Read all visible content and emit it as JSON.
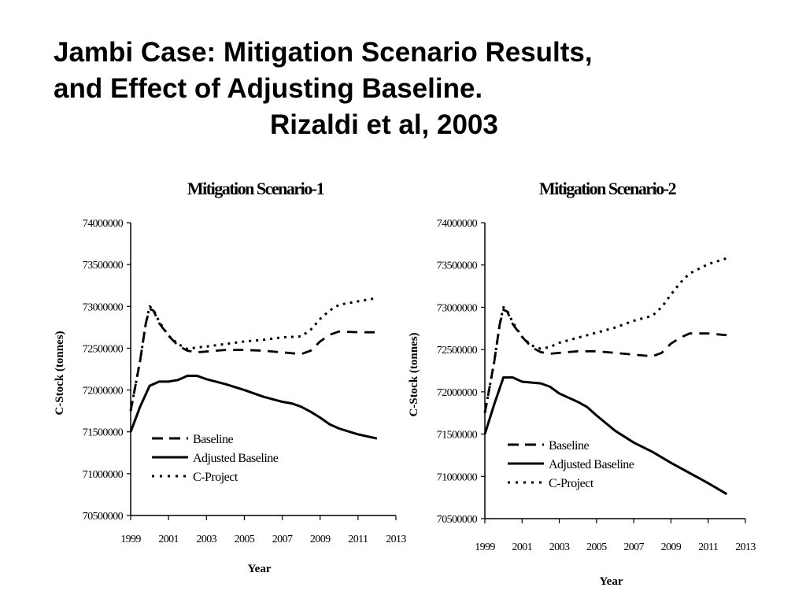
{
  "slide": {
    "title_line1": "Jambi Case:  Mitigation Scenario Results,",
    "title_line2": "and Effect of Adjusting Baseline.",
    "title_line3": "Rizaldi et al, 2003"
  },
  "chart_data": [
    {
      "type": "line",
      "title": "Mitigation Scenario-1",
      "xlabel": "Year",
      "ylabel": "C-Stock (tonnes)",
      "xlim": [
        1999,
        2013
      ],
      "ylim": [
        70500000,
        74000000
      ],
      "x_ticks": [
        1999,
        2001,
        2003,
        2005,
        2007,
        2009,
        2011,
        2013
      ],
      "y_ticks": [
        70500000,
        71000000,
        71500000,
        72000000,
        72500000,
        73000000,
        73500000,
        74000000
      ],
      "legend_position": "bottom-left",
      "series": [
        {
          "name": "Baseline",
          "style": "dashed",
          "points": [
            [
              1999,
              71750000
            ],
            [
              1999.5,
              72350000
            ],
            [
              1999.8,
              72800000
            ],
            [
              2000,
              72970000
            ],
            [
              2000.2,
              72950000
            ],
            [
              2000.5,
              72800000
            ],
            [
              2001,
              72650000
            ],
            [
              2001.5,
              72530000
            ],
            [
              2002,
              72470000
            ],
            [
              2002.5,
              72450000
            ],
            [
              2003,
              72460000
            ],
            [
              2004,
              72480000
            ],
            [
              2005,
              72480000
            ],
            [
              2006,
              72470000
            ],
            [
              2007,
              72450000
            ],
            [
              2008,
              72430000
            ],
            [
              2008.5,
              72470000
            ],
            [
              2009,
              72580000
            ],
            [
              2009.5,
              72660000
            ],
            [
              2010,
              72700000
            ],
            [
              2011,
              72690000
            ],
            [
              2012,
              72690000
            ]
          ]
        },
        {
          "name": "Adjusted Baseline",
          "style": "solid",
          "points": [
            [
              1999,
              71500000
            ],
            [
              1999.5,
              71800000
            ],
            [
              2000,
              72050000
            ],
            [
              2000.5,
              72100000
            ],
            [
              2001,
              72100000
            ],
            [
              2001.5,
              72120000
            ],
            [
              2002,
              72170000
            ],
            [
              2002.5,
              72170000
            ],
            [
              2003,
              72130000
            ],
            [
              2004,
              72070000
            ],
            [
              2005,
              72000000
            ],
            [
              2006,
              71920000
            ],
            [
              2007,
              71860000
            ],
            [
              2007.5,
              71840000
            ],
            [
              2008,
              71800000
            ],
            [
              2008.5,
              71740000
            ],
            [
              2009,
              71670000
            ],
            [
              2009.5,
              71590000
            ],
            [
              2010,
              71540000
            ],
            [
              2011,
              71470000
            ],
            [
              2012,
              71420000
            ]
          ]
        },
        {
          "name": "C-Project",
          "style": "dotted",
          "points": [
            [
              1999,
              71750000
            ],
            [
              1999.5,
              72350000
            ],
            [
              1999.8,
              72800000
            ],
            [
              2000,
              73000000
            ],
            [
              2000.2,
              72960000
            ],
            [
              2000.5,
              72820000
            ],
            [
              2001,
              72650000
            ],
            [
              2001.5,
              72550000
            ],
            [
              2002,
              72490000
            ],
            [
              2002.5,
              72510000
            ],
            [
              2003,
              72520000
            ],
            [
              2004,
              72550000
            ],
            [
              2005,
              72580000
            ],
            [
              2006,
              72600000
            ],
            [
              2007,
              72630000
            ],
            [
              2008,
              72640000
            ],
            [
              2008.5,
              72720000
            ],
            [
              2009,
              72850000
            ],
            [
              2009.5,
              72950000
            ],
            [
              2010,
              73020000
            ],
            [
              2011,
              73060000
            ],
            [
              2012,
              73100000
            ]
          ]
        }
      ]
    },
    {
      "type": "line",
      "title": "Mitigation Scenario-2",
      "xlabel": "Year",
      "ylabel": "C-Stock (tonnes)",
      "xlim": [
        1999,
        2013
      ],
      "ylim": [
        70500000,
        74000000
      ],
      "x_ticks": [
        1999,
        2001,
        2003,
        2005,
        2007,
        2009,
        2011,
        2013
      ],
      "y_ticks": [
        70500000,
        71000000,
        71500000,
        72000000,
        72500000,
        73000000,
        73500000,
        74000000
      ],
      "legend_position": "bottom-left",
      "series": [
        {
          "name": "Baseline",
          "style": "dashed",
          "points": [
            [
              1999,
              71750000
            ],
            [
              1999.5,
              72350000
            ],
            [
              1999.8,
              72800000
            ],
            [
              2000,
              72970000
            ],
            [
              2000.2,
              72950000
            ],
            [
              2000.5,
              72800000
            ],
            [
              2001,
              72650000
            ],
            [
              2001.5,
              72530000
            ],
            [
              2002,
              72470000
            ],
            [
              2002.5,
              72450000
            ],
            [
              2003,
              72460000
            ],
            [
              2004,
              72480000
            ],
            [
              2005,
              72480000
            ],
            [
              2006,
              72460000
            ],
            [
              2007,
              72440000
            ],
            [
              2008,
              72420000
            ],
            [
              2008.5,
              72460000
            ],
            [
              2009,
              72570000
            ],
            [
              2009.5,
              72640000
            ],
            [
              2010,
              72690000
            ],
            [
              2011,
              72690000
            ],
            [
              2012,
              72670000
            ]
          ]
        },
        {
          "name": "Adjusted Baseline",
          "style": "solid",
          "points": [
            [
              1999,
              71500000
            ],
            [
              1999.5,
              71850000
            ],
            [
              2000,
              72170000
            ],
            [
              2000.5,
              72170000
            ],
            [
              2001,
              72120000
            ],
            [
              2002,
              72100000
            ],
            [
              2002.5,
              72060000
            ],
            [
              2003,
              71980000
            ],
            [
              2004,
              71880000
            ],
            [
              2004.5,
              71820000
            ],
            [
              2005,
              71720000
            ],
            [
              2006,
              71540000
            ],
            [
              2007,
              71400000
            ],
            [
              2008,
              71290000
            ],
            [
              2009,
              71160000
            ],
            [
              2010,
              71040000
            ],
            [
              2011,
              70920000
            ],
            [
              2012,
              70790000
            ]
          ]
        },
        {
          "name": "C-Project",
          "style": "dotted",
          "points": [
            [
              1999,
              71750000
            ],
            [
              1999.5,
              72350000
            ],
            [
              1999.8,
              72800000
            ],
            [
              2000,
              73000000
            ],
            [
              2000.2,
              72960000
            ],
            [
              2000.5,
              72820000
            ],
            [
              2001,
              72650000
            ],
            [
              2001.5,
              72550000
            ],
            [
              2002,
              72510000
            ],
            [
              2002.5,
              72530000
            ],
            [
              2003,
              72580000
            ],
            [
              2004,
              72640000
            ],
            [
              2005,
              72700000
            ],
            [
              2006,
              72760000
            ],
            [
              2007,
              72840000
            ],
            [
              2008,
              72900000
            ],
            [
              2008.5,
              73000000
            ],
            [
              2009,
              73150000
            ],
            [
              2009.5,
              73290000
            ],
            [
              2010,
              73400000
            ],
            [
              2011,
              73510000
            ],
            [
              2012,
              73580000
            ]
          ]
        }
      ]
    }
  ]
}
